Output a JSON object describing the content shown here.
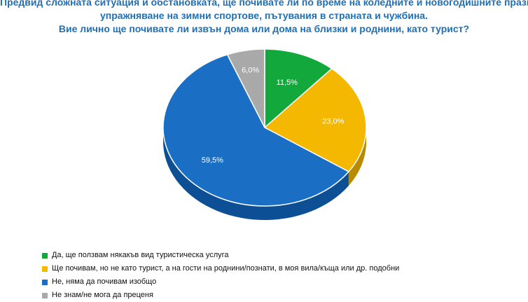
{
  "title_lines": [
    "Предвид сложната ситуация и обстановката, ще почивате ли по време на коледните и новогодишните празници,",
    "упражняване на зимни спортове, пътувания в страната и чужбина.",
    "Вие лично ще почивате ли извън дома или дома на близки и роднини, като турист?"
  ],
  "chart_data": {
    "type": "pie",
    "three_d": true,
    "start": "top, clockwise",
    "slices": [
      {
        "label": "Да, ще ползвам някакъв вид туристическа услуга",
        "value": 11.5,
        "value_label": "11,5%",
        "color": "#12a83c",
        "depth_color": "#0b7a2a"
      },
      {
        "label": "Ще почивам, но не като турист, а на гости на роднини/познати, в моя вила/къща или др. подобни",
        "value": 23.0,
        "value_label": "23,0%",
        "color": "#f5b800",
        "depth_color": "#b98900"
      },
      {
        "label": "Не, няма да почивам изобщо",
        "value": 59.5,
        "value_label": "59,5%",
        "color": "#1a6fc4",
        "depth_color": "#0d4f94"
      },
      {
        "label": "Не знам/не мога да преценя",
        "value": 6.0,
        "value_label": "6,0%",
        "color": "#a9a9a9",
        "depth_color": "#7c7c7c"
      }
    ],
    "legend_position": "bottom-left"
  }
}
